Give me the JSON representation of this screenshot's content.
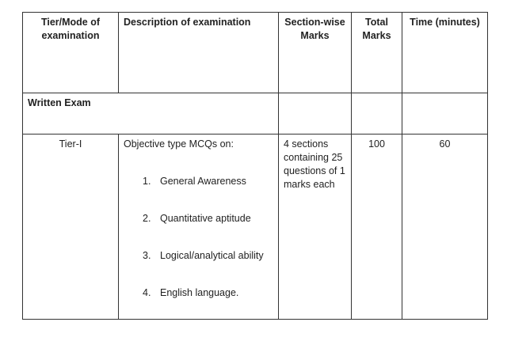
{
  "headers": [
    "Tier/Mode of examination",
    "Description of examination",
    "Section-wise Marks",
    "Total Marks",
    "Time (minutes)"
  ],
  "section_row": "Written Exam",
  "tier_row": {
    "tier": "Tier-I",
    "description_intro": "Objective type MCQs on:",
    "topics": [
      {
        "num": "1.",
        "label": "General Awareness"
      },
      {
        "num": "2.",
        "label": "Quantitative aptitude"
      },
      {
        "num": "3.",
        "label": "Logical/analytical ability"
      },
      {
        "num": "4.",
        "label": "English language."
      }
    ],
    "section_marks": "4 sections containing 25 questions of 1 marks each",
    "total_marks": "100",
    "time": "60"
  }
}
